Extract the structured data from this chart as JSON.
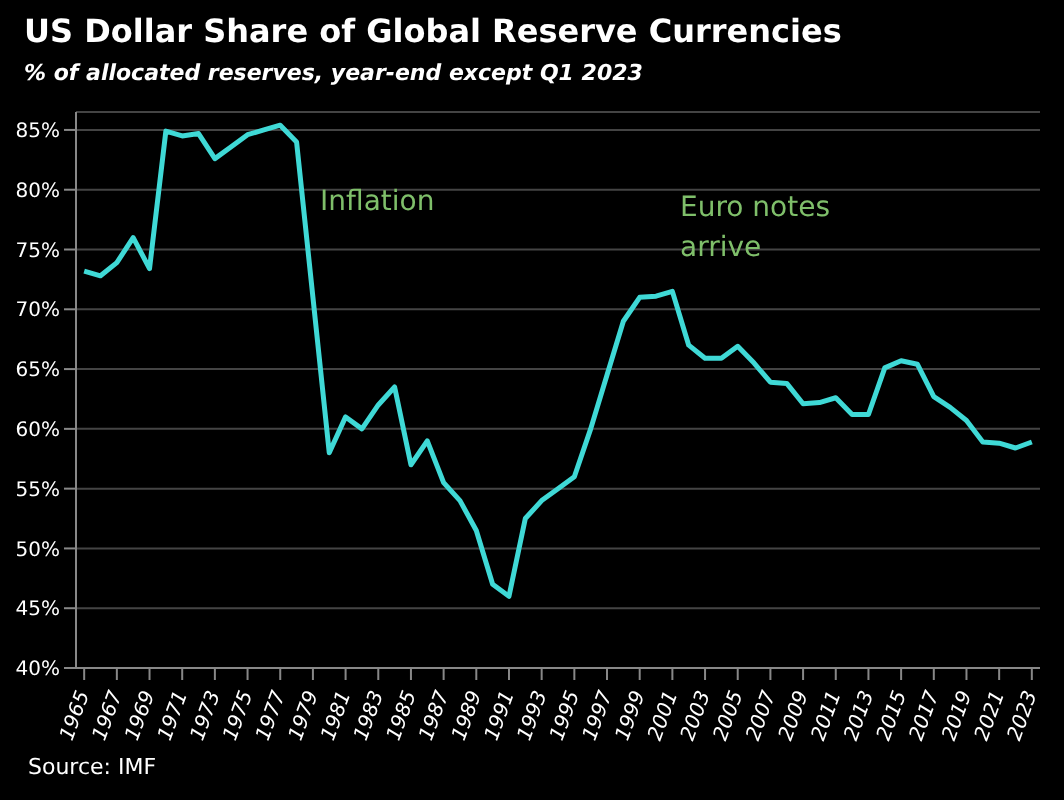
{
  "chart_data": {
    "type": "line",
    "title": "US Dollar Share of Global  Reserve Currencies",
    "subtitle": "% of allocated reserves, year-end except Q1 2023",
    "x": [
      1965,
      1966,
      1967,
      1968,
      1969,
      1970,
      1971,
      1972,
      1973,
      1974,
      1975,
      1976,
      1977,
      1978,
      1979,
      1980,
      1981,
      1982,
      1983,
      1984,
      1985,
      1986,
      1987,
      1988,
      1989,
      1990,
      1991,
      1992,
      1993,
      1994,
      1995,
      1996,
      1997,
      1998,
      1999,
      2000,
      2001,
      2002,
      2003,
      2004,
      2005,
      2006,
      2007,
      2008,
      2009,
      2010,
      2011,
      2012,
      2013,
      2014,
      2015,
      2016,
      2017,
      2018,
      2019,
      2020,
      2021,
      2022,
      2023
    ],
    "series": [
      {
        "color": "#3fd9d6",
        "values": [
          73.2,
          72.8,
          73.9,
          76.0,
          73.4,
          84.9,
          84.5,
          84.7,
          82.6,
          83.6,
          84.6,
          85.0,
          85.4,
          84.0,
          71,
          58,
          61,
          60,
          62,
          63.5,
          57,
          59,
          55.5,
          54,
          51.5,
          47,
          46,
          52.5,
          54,
          55,
          56,
          60,
          64.5,
          69,
          71,
          71.1,
          71.5,
          67,
          65.9,
          65.9,
          66.9,
          65.5,
          63.9,
          63.8,
          62.1,
          62.2,
          62.6,
          61.2,
          61.2,
          65.1,
          65.7,
          65.4,
          62.7,
          61.8,
          60.7,
          58.9,
          58.8,
          58.4,
          58.9
        ]
      }
    ],
    "xlim": [
      1964.5,
      2023.5
    ],
    "xticks": [
      1965,
      1967,
      1969,
      1971,
      1973,
      1975,
      1977,
      1979,
      1981,
      1983,
      1985,
      1987,
      1989,
      1991,
      1993,
      1995,
      1997,
      1999,
      2001,
      2003,
      2005,
      2007,
      2009,
      2011,
      2013,
      2015,
      2017,
      2019,
      2021,
      2023
    ],
    "ylim": [
      40,
      86.5
    ],
    "yticks": [
      {
        "value": 40,
        "label": "40%"
      },
      {
        "value": 45,
        "label": "45%"
      },
      {
        "value": 50,
        "label": "50%"
      },
      {
        "value": 55,
        "label": "55%"
      },
      {
        "value": 60,
        "label": "60%"
      },
      {
        "value": 65,
        "label": "65%"
      },
      {
        "value": 70,
        "label": "70%"
      },
      {
        "value": 75,
        "label": "75%"
      },
      {
        "value": 80,
        "label": "80%"
      },
      {
        "value": 85,
        "label": "85%"
      }
    ],
    "grid": "y",
    "marker": "none",
    "line_style": "solid",
    "annotations": [
      "Inflation",
      "Euro notes arrive",
      "Source: IMF"
    ]
  }
}
